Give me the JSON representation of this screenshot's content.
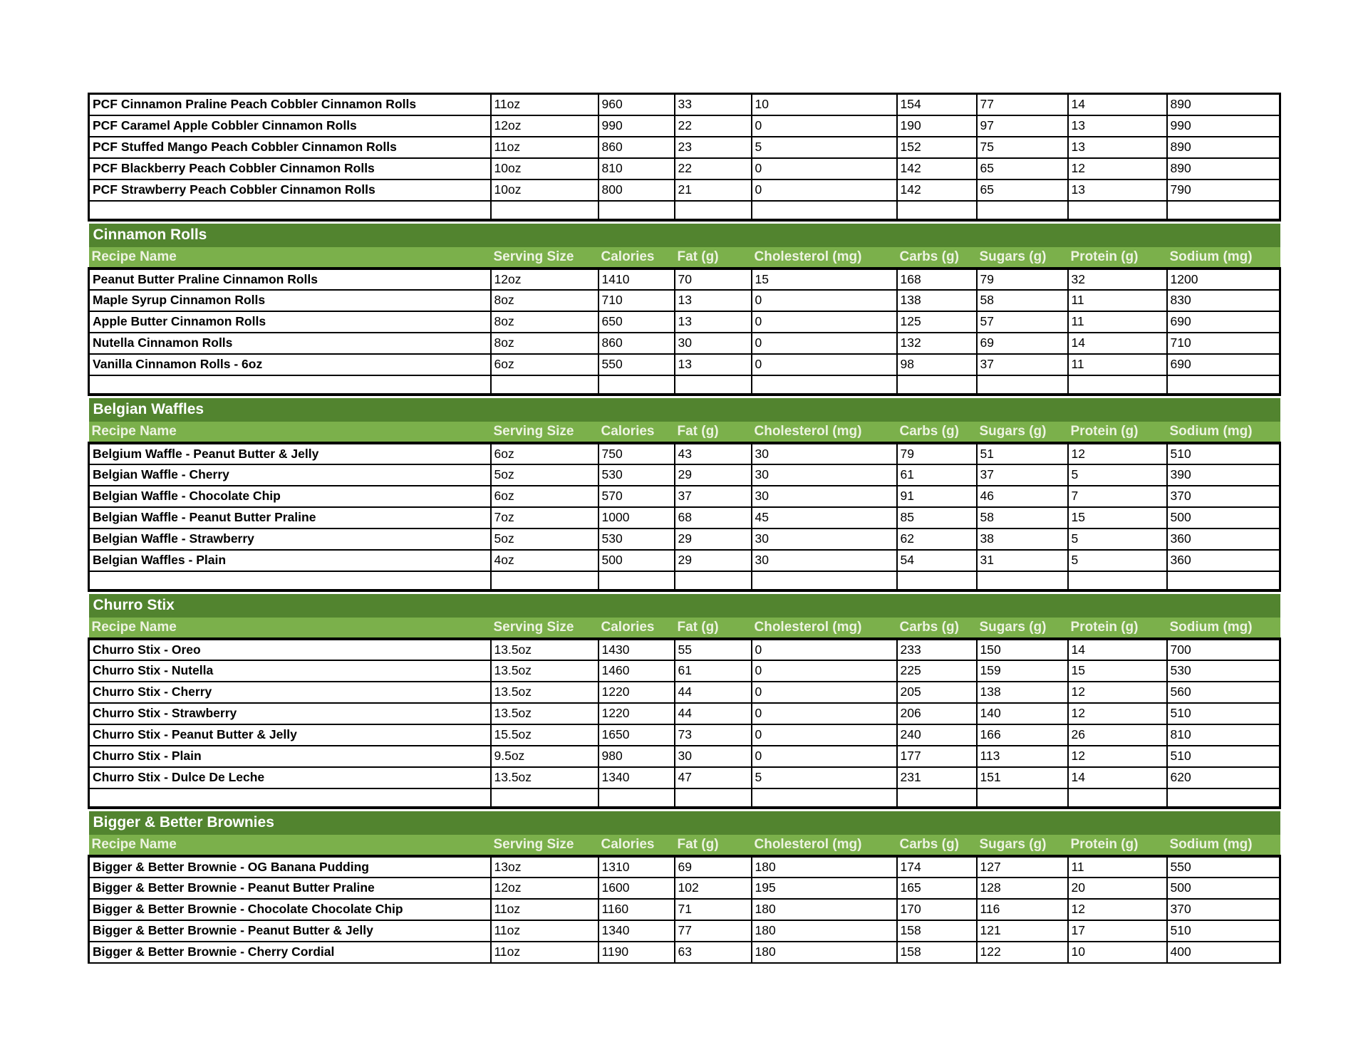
{
  "columns": [
    "Recipe Name",
    "Serving Size",
    "Calories",
    "Fat (g)",
    "Cholesterol (mg)",
    "Carbs (g)",
    "Sugars (g)",
    "Protein (g)",
    "Sodium (mg)"
  ],
  "colors": {
    "section_header_bg": "#52842F",
    "column_header_bg": "#7BB04B",
    "section_header_text": "#FFFFFF",
    "column_header_text": "#EDF3E1",
    "cell_border": "#000000",
    "cell_text": "#000000"
  },
  "sections": [
    {
      "id": "pcf-peach-cobbler-rolls-continued",
      "title": "",
      "has_header": false,
      "trailing_empty_row": true,
      "rows": [
        [
          "PCF Cinnamon Praline Peach Cobbler Cinnamon Rolls",
          "11oz",
          "960",
          "33",
          "10",
          "154",
          "77",
          "14",
          "890"
        ],
        [
          "PCF Caramel Apple Cobbler Cinnamon Rolls",
          "12oz",
          "990",
          "22",
          "0",
          "190",
          "97",
          "13",
          "990"
        ],
        [
          "PCF Stuffed Mango Peach Cobbler Cinnamon Rolls",
          "11oz",
          "860",
          "23",
          "5",
          "152",
          "75",
          "13",
          "890"
        ],
        [
          "PCF Blackberry Peach Cobbler Cinnamon Rolls",
          "10oz",
          "810",
          "22",
          "0",
          "142",
          "65",
          "12",
          "890"
        ],
        [
          "PCF Strawberry Peach Cobbler Cinnamon Rolls",
          "10oz",
          "800",
          "21",
          "0",
          "142",
          "65",
          "13",
          "790"
        ]
      ]
    },
    {
      "id": "cinnamon-rolls",
      "title": "Cinnamon Rolls",
      "has_header": true,
      "trailing_empty_row": true,
      "rows": [
        [
          "Peanut Butter Praline Cinnamon Rolls",
          "12oz",
          "1410",
          "70",
          "15",
          "168",
          "79",
          "32",
          "1200"
        ],
        [
          "Maple Syrup Cinnamon Rolls",
          "8oz",
          "710",
          "13",
          "0",
          "138",
          "58",
          "11",
          "830"
        ],
        [
          "Apple Butter Cinnamon Rolls",
          "8oz",
          "650",
          "13",
          "0",
          "125",
          "57",
          "11",
          "690"
        ],
        [
          "Nutella Cinnamon Rolls",
          "8oz",
          "860",
          "30",
          "0",
          "132",
          "69",
          "14",
          "710"
        ],
        [
          "Vanilla Cinnamon Rolls - 6oz",
          "6oz",
          "550",
          "13",
          "0",
          "98",
          "37",
          "11",
          "690"
        ]
      ]
    },
    {
      "id": "belgian-waffles",
      "title": "Belgian Waffles",
      "has_header": true,
      "trailing_empty_row": true,
      "rows": [
        [
          "Belgium Waffle - Peanut Butter & Jelly",
          "6oz",
          "750",
          "43",
          "30",
          "79",
          "51",
          "12",
          "510"
        ],
        [
          "Belgian Waffle - Cherry",
          "5oz",
          "530",
          "29",
          "30",
          "61",
          "37",
          "5",
          "390"
        ],
        [
          "Belgian Waffle - Chocolate Chip",
          "6oz",
          "570",
          "37",
          "30",
          "91",
          "46",
          "7",
          "370"
        ],
        [
          "Belgian Waffle - Peanut Butter Praline",
          "7oz",
          "1000",
          "68",
          "45",
          "85",
          "58",
          "15",
          "500"
        ],
        [
          "Belgian Waffle - Strawberry",
          "5oz",
          "530",
          "29",
          "30",
          "62",
          "38",
          "5",
          "360"
        ],
        [
          "Belgian Waffles - Plain",
          "4oz",
          "500",
          "29",
          "30",
          "54",
          "31",
          "5",
          "360"
        ]
      ]
    },
    {
      "id": "churro-stix",
      "title": "Churro Stix",
      "has_header": true,
      "trailing_empty_row": true,
      "rows": [
        [
          "Churro Stix - Oreo",
          "13.5oz",
          "1430",
          "55",
          "0",
          "233",
          "150",
          "14",
          "700"
        ],
        [
          "Churro Stix - Nutella",
          "13.5oz",
          "1460",
          "61",
          "0",
          "225",
          "159",
          "15",
          "530"
        ],
        [
          "Churro Stix - Cherry",
          "13.5oz",
          "1220",
          "44",
          "0",
          "205",
          "138",
          "12",
          "560"
        ],
        [
          "Churro Stix - Strawberry",
          "13.5oz",
          "1220",
          "44",
          "0",
          "206",
          "140",
          "12",
          "510"
        ],
        [
          "Churro Stix - Peanut Butter & Jelly",
          "15.5oz",
          "1650",
          "73",
          "0",
          "240",
          "166",
          "26",
          "810"
        ],
        [
          "Churro Stix - Plain",
          "9.5oz",
          "980",
          "30",
          "0",
          "177",
          "113",
          "12",
          "510"
        ],
        [
          "Churro Stix - Dulce De Leche",
          "13.5oz",
          "1340",
          "47",
          "5",
          "231",
          "151",
          "14",
          "620"
        ]
      ]
    },
    {
      "id": "bigger-better-brownies",
      "title": "Bigger & Better Brownies",
      "has_header": true,
      "trailing_empty_row": false,
      "rows": [
        [
          "Bigger & Better Brownie - OG Banana Pudding",
          "13oz",
          "1310",
          "69",
          "180",
          "174",
          "127",
          "11",
          "550"
        ],
        [
          "Bigger & Better Brownie - Peanut Butter Praline",
          "12oz",
          "1600",
          "102",
          "195",
          "165",
          "128",
          "20",
          "500"
        ],
        [
          "Bigger & Better Brownie - Chocolate Chocolate Chip",
          "11oz",
          "1160",
          "71",
          "180",
          "170",
          "116",
          "12",
          "370"
        ],
        [
          "Bigger & Better Brownie - Peanut Butter & Jelly",
          "11oz",
          "1340",
          "77",
          "180",
          "158",
          "121",
          "17",
          "510"
        ],
        [
          "Bigger & Better Brownie - Cherry Cordial",
          "11oz",
          "1190",
          "63",
          "180",
          "158",
          "122",
          "10",
          "400"
        ]
      ]
    }
  ]
}
